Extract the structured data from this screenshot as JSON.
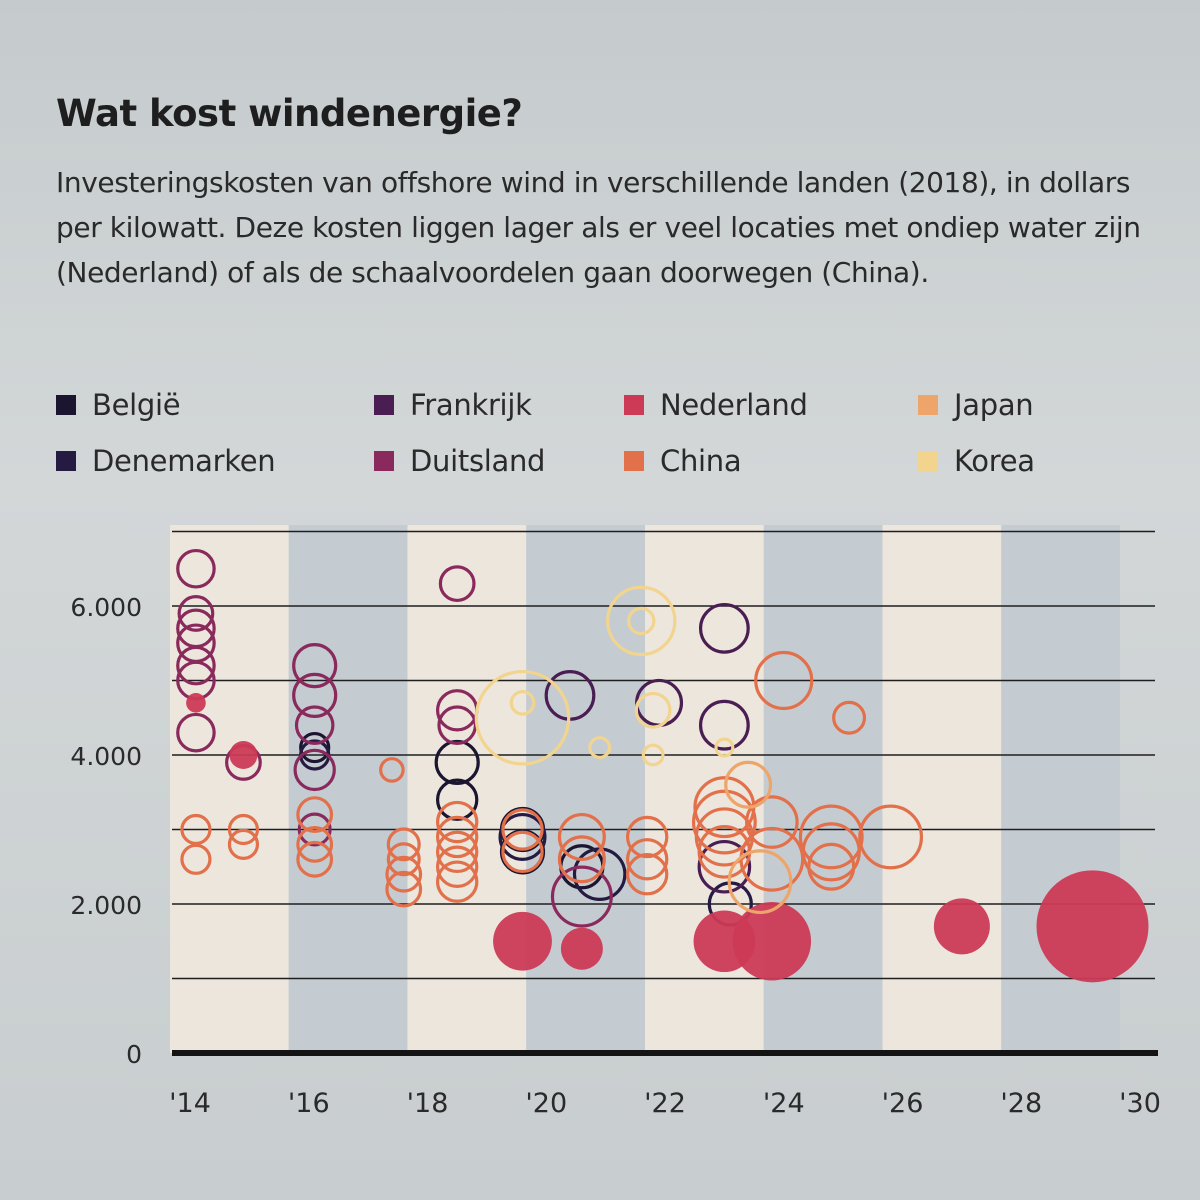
{
  "header": {
    "title": "Wat kost windenergie?",
    "subtitle": "Investeringskosten van offshore wind in verschillende landen (2018), in dollars per kilowatt. Deze kosten liggen lager als er veel locaties met ondiep water zijn (Nederland) of als de schaalvoordelen gaan doorwegen (China)."
  },
  "legend": [
    {
      "label": "België",
      "color": "#1b1530"
    },
    {
      "label": "Denemarken",
      "color": "#241a42"
    },
    {
      "label": "Frankrijk",
      "color": "#4a1e52"
    },
    {
      "label": "Duitsland",
      "color": "#8a2a5c"
    },
    {
      "label": "Nederland",
      "color": "#cc3a55"
    },
    {
      "label": "China",
      "color": "#e2704a"
    },
    {
      "label": "Japan",
      "color": "#eda56a"
    },
    {
      "label": "Korea",
      "color": "#f2d48e"
    }
  ],
  "chart_data": {
    "type": "scatter",
    "title": "Wat kost windenergie?",
    "xlabel": "",
    "ylabel": "",
    "xlim": [
      2014,
      2030
    ],
    "ylim": [
      0,
      6600
    ],
    "x_ticks": [
      "'14",
      "'16",
      "'18",
      "'20",
      "'22",
      "'24",
      "'26",
      "'28",
      "'30"
    ],
    "y_ticks": [
      "0",
      "2.000",
      "4.000",
      "6.000"
    ],
    "grid": true,
    "bubble_size": "relative project size",
    "series": [
      {
        "name": "België",
        "color": "#1b1530",
        "points": [
          {
            "x": 2016.1,
            "y": 4100,
            "s": 1
          },
          {
            "x": 2018.5,
            "y": 3900,
            "s": 1.5
          },
          {
            "x": 2018.5,
            "y": 3400,
            "s": 1.4
          },
          {
            "x": 2019.6,
            "y": 3000,
            "s": 1.5
          },
          {
            "x": 2019.6,
            "y": 2700,
            "s": 1.5
          },
          {
            "x": 2020.6,
            "y": 2500,
            "s": 1.5
          }
        ]
      },
      {
        "name": "Denemarken",
        "color": "#241a42",
        "points": [
          {
            "x": 2016.1,
            "y": 4000,
            "s": 1
          },
          {
            "x": 2019.6,
            "y": 2900,
            "s": 1.6
          },
          {
            "x": 2020.9,
            "y": 2400,
            "s": 1.8
          },
          {
            "x": 2023.1,
            "y": 2000,
            "s": 1.5
          }
        ]
      },
      {
        "name": "Frankrijk",
        "color": "#4a1e52",
        "points": [
          {
            "x": 2020.4,
            "y": 4800,
            "s": 1.7
          },
          {
            "x": 2021.9,
            "y": 4700,
            "s": 1.6
          },
          {
            "x": 2023.0,
            "y": 5700,
            "s": 1.7
          },
          {
            "x": 2023.0,
            "y": 4400,
            "s": 1.7
          },
          {
            "x": 2023.0,
            "y": 2500,
            "s": 1.8
          }
        ]
      },
      {
        "name": "Duitsland",
        "color": "#8a2a5c",
        "points": [
          {
            "x": 2014.1,
            "y": 6500,
            "s": 1.3
          },
          {
            "x": 2014.1,
            "y": 5900,
            "s": 1.2
          },
          {
            "x": 2014.1,
            "y": 5700,
            "s": 1.3
          },
          {
            "x": 2014.1,
            "y": 5500,
            "s": 1.3
          },
          {
            "x": 2014.1,
            "y": 5200,
            "s": 1.3
          },
          {
            "x": 2014.1,
            "y": 5000,
            "s": 1.3
          },
          {
            "x": 2014.1,
            "y": 4300,
            "s": 1.3
          },
          {
            "x": 2014.9,
            "y": 3900,
            "s": 1.2
          },
          {
            "x": 2016.1,
            "y": 5200,
            "s": 1.5
          },
          {
            "x": 2016.1,
            "y": 4800,
            "s": 1.5
          },
          {
            "x": 2016.1,
            "y": 4400,
            "s": 1.3
          },
          {
            "x": 2016.1,
            "y": 3800,
            "s": 1.4
          },
          {
            "x": 2016.1,
            "y": 3000,
            "s": 1.1
          },
          {
            "x": 2018.5,
            "y": 6300,
            "s": 1.2
          },
          {
            "x": 2018.5,
            "y": 4600,
            "s": 1.4
          },
          {
            "x": 2018.5,
            "y": 4400,
            "s": 1.3
          },
          {
            "x": 2020.6,
            "y": 2100,
            "s": 2.1
          }
        ]
      },
      {
        "name": "Nederland",
        "color": "#cc3a55",
        "filled": true,
        "points": [
          {
            "x": 2014.1,
            "y": 4700,
            "s": 0.7
          },
          {
            "x": 2014.9,
            "y": 4000,
            "s": 1.0
          },
          {
            "x": 2019.6,
            "y": 1500,
            "s": 2.1
          },
          {
            "x": 2020.6,
            "y": 1400,
            "s": 1.5
          },
          {
            "x": 2023.0,
            "y": 1500,
            "s": 2.2
          },
          {
            "x": 2023.8,
            "y": 1500,
            "s": 2.8
          },
          {
            "x": 2027.0,
            "y": 1700,
            "s": 2.0
          },
          {
            "x": 2029.2,
            "y": 1700,
            "s": 4.0
          }
        ]
      },
      {
        "name": "China",
        "color": "#e2704a",
        "points": [
          {
            "x": 2014.1,
            "y": 3000,
            "s": 1.0
          },
          {
            "x": 2014.1,
            "y": 2600,
            "s": 1.0
          },
          {
            "x": 2014.9,
            "y": 3000,
            "s": 1.0
          },
          {
            "x": 2014.9,
            "y": 2800,
            "s": 1.0
          },
          {
            "x": 2016.1,
            "y": 3200,
            "s": 1.2
          },
          {
            "x": 2016.1,
            "y": 2800,
            "s": 1.2
          },
          {
            "x": 2016.1,
            "y": 2600,
            "s": 1.2
          },
          {
            "x": 2017.4,
            "y": 3800,
            "s": 0.8
          },
          {
            "x": 2017.6,
            "y": 2800,
            "s": 1.1
          },
          {
            "x": 2017.6,
            "y": 2600,
            "s": 1.1
          },
          {
            "x": 2017.6,
            "y": 2400,
            "s": 1.2
          },
          {
            "x": 2017.6,
            "y": 2200,
            "s": 1.2
          },
          {
            "x": 2018.5,
            "y": 3100,
            "s": 1.4
          },
          {
            "x": 2018.5,
            "y": 2900,
            "s": 1.4
          },
          {
            "x": 2018.5,
            "y": 2700,
            "s": 1.4
          },
          {
            "x": 2018.5,
            "y": 2500,
            "s": 1.4
          },
          {
            "x": 2018.5,
            "y": 2300,
            "s": 1.4
          },
          {
            "x": 2019.6,
            "y": 3000,
            "s": 1.4
          },
          {
            "x": 2019.6,
            "y": 2700,
            "s": 1.4
          },
          {
            "x": 2020.6,
            "y": 2900,
            "s": 1.6
          },
          {
            "x": 2020.6,
            "y": 2600,
            "s": 1.6
          },
          {
            "x": 2021.7,
            "y": 2900,
            "s": 1.4
          },
          {
            "x": 2021.7,
            "y": 2600,
            "s": 1.4
          },
          {
            "x": 2021.7,
            "y": 2400,
            "s": 1.4
          },
          {
            "x": 2023.0,
            "y": 3300,
            "s": 2.1
          },
          {
            "x": 2023.0,
            "y": 3100,
            "s": 2.2
          },
          {
            "x": 2023.0,
            "y": 2900,
            "s": 2.0
          },
          {
            "x": 2023.0,
            "y": 2700,
            "s": 1.8
          },
          {
            "x": 2023.8,
            "y": 3100,
            "s": 1.8
          },
          {
            "x": 2023.8,
            "y": 2600,
            "s": 2.2
          },
          {
            "x": 2024.8,
            "y": 2900,
            "s": 2.2
          },
          {
            "x": 2024.8,
            "y": 2700,
            "s": 2.0
          },
          {
            "x": 2024.8,
            "y": 2500,
            "s": 1.6
          },
          {
            "x": 2025.8,
            "y": 2900,
            "s": 2.2
          },
          {
            "x": 2024.0,
            "y": 5000,
            "s": 2.0
          },
          {
            "x": 2025.1,
            "y": 4500,
            "s": 1.1
          }
        ]
      },
      {
        "name": "Japan",
        "color": "#eda56a",
        "points": [
          {
            "x": 2023.4,
            "y": 3600,
            "s": 1.6
          },
          {
            "x": 2023.6,
            "y": 2300,
            "s": 2.2
          }
        ]
      },
      {
        "name": "Korea",
        "color": "#f2d48e",
        "points": [
          {
            "x": 2019.6,
            "y": 4500,
            "s": 3.3
          },
          {
            "x": 2019.6,
            "y": 4700,
            "s": 0.8
          },
          {
            "x": 2020.9,
            "y": 4100,
            "s": 0.7
          },
          {
            "x": 2021.6,
            "y": 5800,
            "s": 2.4
          },
          {
            "x": 2021.6,
            "y": 5800,
            "s": 0.9
          },
          {
            "x": 2021.8,
            "y": 4600,
            "s": 1.2
          },
          {
            "x": 2021.8,
            "y": 4000,
            "s": 0.7
          },
          {
            "x": 2023.0,
            "y": 4100,
            "s": 0.6
          }
        ]
      }
    ]
  }
}
